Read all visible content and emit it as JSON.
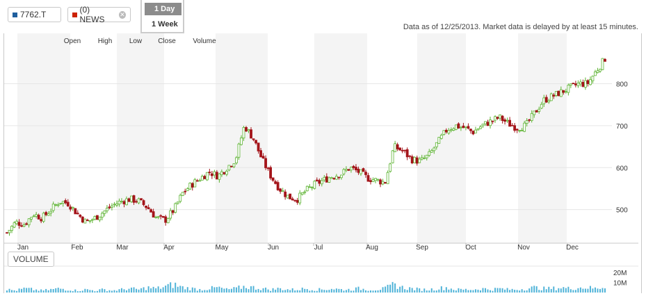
{
  "toolbar": {
    "symbol_chip": "7762.T",
    "symbol_color": "#1f5f9e",
    "news_chip": "(0) NEWS",
    "news_color": "#cc2200",
    "news_close_icon": "close-icon",
    "period_day": "1 Day",
    "period_week": "1 Week"
  },
  "as_of": "Data as of 12/25/2013. Market data is delayed by at least 15 minutes.",
  "ohlc_labels": [
    "Open",
    "High",
    "Low",
    "Close",
    "Volume"
  ],
  "volume_label": "VOLUME",
  "colors": {
    "up": "#5cb331",
    "down": "#a4141a",
    "volume": "#4fb3d8",
    "band": "#f4f4f4"
  },
  "chart_data": {
    "type": "candlestick",
    "months": [
      "Jan",
      "Feb",
      "Mar",
      "Apr",
      "May",
      "Jun",
      "Jul",
      "Aug",
      "Sep",
      "Oct",
      "Nov",
      "Dec"
    ],
    "price_ticks": [
      500,
      600,
      700,
      800
    ],
    "price_range": [
      420,
      920
    ],
    "volume_ticks": [
      "10M",
      "20M"
    ],
    "volume_range": [
      0,
      25
    ],
    "weekly_close": [
      445,
      470,
      465,
      490,
      480,
      500,
      520,
      515,
      490,
      470,
      480,
      495,
      510,
      520,
      525,
      520,
      505,
      480,
      475,
      500,
      540,
      560,
      575,
      590,
      580,
      600,
      620,
      700,
      670,
      620,
      580,
      550,
      530,
      525,
      545,
      560,
      570,
      580,
      585,
      600,
      590,
      575,
      570,
      565,
      650,
      640,
      620,
      615,
      630,
      660,
      690,
      700,
      695,
      685,
      700,
      710,
      720,
      705,
      695,
      700,
      730,
      760,
      770,
      780,
      790,
      800,
      800,
      830,
      860
    ],
    "weekly_volume": [
      3,
      2,
      4,
      3,
      2,
      3,
      4,
      3,
      2,
      3,
      2,
      3,
      2,
      3,
      4,
      3,
      5,
      4,
      6,
      8,
      5,
      4,
      3,
      4,
      5,
      3,
      4,
      6,
      5,
      4,
      3,
      4,
      3,
      3,
      4,
      3,
      3,
      4,
      3,
      3,
      4,
      3,
      3,
      4,
      8,
      5,
      4,
      3,
      3,
      4,
      5,
      3,
      3,
      3,
      4,
      3,
      4,
      3,
      3,
      4,
      5,
      4,
      4,
      5,
      4,
      5,
      5,
      4,
      6
    ]
  }
}
